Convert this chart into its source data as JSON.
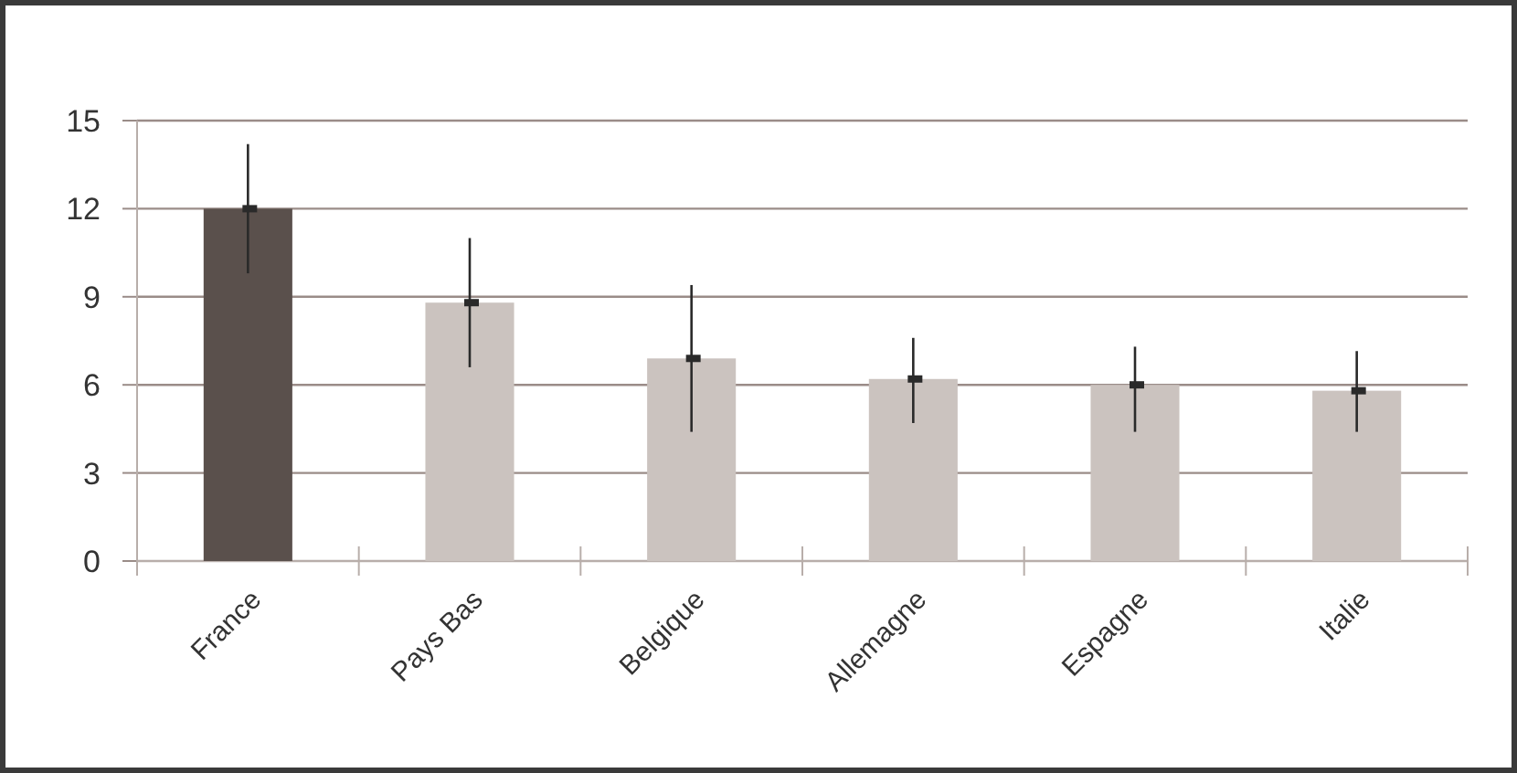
{
  "chart_data": {
    "type": "bar",
    "categories": [
      "France",
      "Pays Bas",
      "Belgique",
      "Allemagne",
      "Espagne",
      "Italie"
    ],
    "values": [
      12,
      8.8,
      6.9,
      6.2,
      6.0,
      5.8
    ],
    "colors": [
      "#5a504c",
      "#cbc3bf",
      "#cbc3bf",
      "#cbc3bf",
      "#cbc3bf",
      "#cbc3bf"
    ],
    "errors": [
      [
        9.8,
        14.2
      ],
      [
        6.6,
        11.0
      ],
      [
        4.4,
        9.4
      ],
      [
        4.7,
        7.6
      ],
      [
        4.4,
        7.3
      ],
      [
        4.4,
        7.15
      ]
    ],
    "ylim": [
      0,
      15
    ],
    "yticks": [
      0,
      3,
      6,
      9,
      12,
      15
    ],
    "grid": "y"
  }
}
